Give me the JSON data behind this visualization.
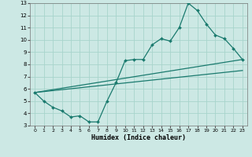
{
  "xlabel": "Humidex (Indice chaleur)",
  "bg_color": "#cce8e4",
  "line_color": "#1a7a6e",
  "grid_color": "#a8d4cc",
  "xlim": [
    -0.5,
    23.5
  ],
  "ylim": [
    3,
    13
  ],
  "xticks": [
    0,
    1,
    2,
    3,
    4,
    5,
    6,
    7,
    8,
    9,
    10,
    11,
    12,
    13,
    14,
    15,
    16,
    17,
    18,
    19,
    20,
    21,
    22,
    23
  ],
  "yticks": [
    3,
    4,
    5,
    6,
    7,
    8,
    9,
    10,
    11,
    12,
    13
  ],
  "line1_x": [
    0,
    1,
    2,
    3,
    4,
    5,
    6,
    7,
    8,
    9,
    10,
    11,
    12,
    13,
    14,
    15,
    16,
    17,
    18,
    19,
    20,
    21,
    22,
    23
  ],
  "line1_y": [
    5.7,
    5.0,
    4.5,
    4.2,
    3.7,
    3.8,
    3.3,
    3.3,
    5.0,
    6.5,
    8.3,
    8.4,
    8.4,
    9.6,
    10.1,
    9.9,
    11.0,
    13.0,
    12.4,
    11.3,
    10.4,
    10.1,
    9.3,
    8.4
  ],
  "line2_x": [
    0,
    23
  ],
  "line2_y": [
    5.7,
    8.4
  ],
  "line3_x": [
    0,
    23
  ],
  "line3_y": [
    5.7,
    7.5
  ]
}
